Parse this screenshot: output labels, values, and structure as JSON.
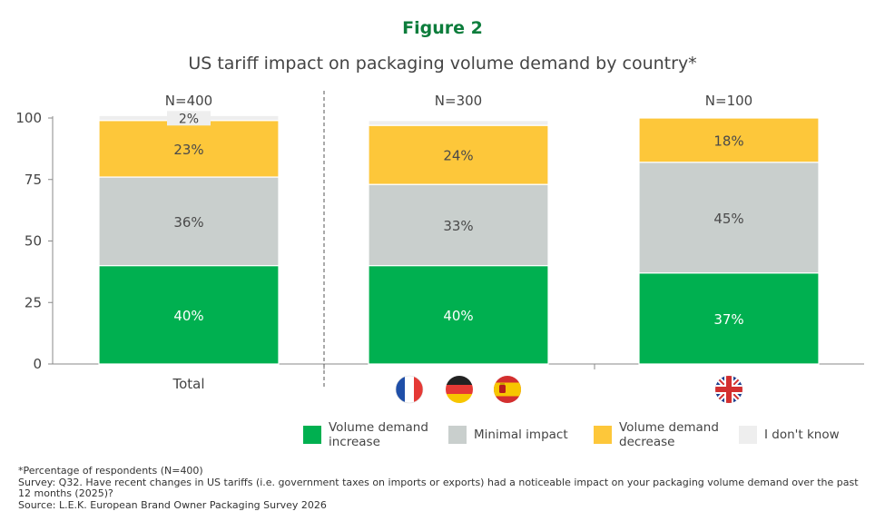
{
  "figure_label": "Figure 2",
  "chart_data": {
    "type": "bar",
    "stacked": true,
    "title": "US tariff impact on packaging volume demand by country*",
    "categories": [
      "Total",
      "France / Germany / Spain",
      "United Kingdom"
    ],
    "category_labels": [
      "Total",
      "",
      ""
    ],
    "group_sizes": [
      "N=400",
      "N=300",
      "N=100"
    ],
    "yticks": [
      0,
      25,
      50,
      75,
      100
    ],
    "ylim": [
      0,
      100
    ],
    "series": [
      {
        "name": "Volume demand increase",
        "values": [
          40,
          40,
          37
        ],
        "labels": [
          "40%",
          "40%",
          "37%"
        ],
        "color": "#00b050"
      },
      {
        "name": "Minimal impact",
        "values": [
          36,
          33,
          45
        ],
        "labels": [
          "36%",
          "33%",
          "45%"
        ],
        "color": "#c9cfcd"
      },
      {
        "name": "Volume demand decrease",
        "values": [
          23,
          24,
          18
        ],
        "labels": [
          "23%",
          "24%",
          "18%"
        ],
        "color": "#fdc73a"
      },
      {
        "name": "I don't know",
        "values": [
          2,
          2,
          0
        ],
        "labels": [
          "2%",
          "",
          ""
        ],
        "color": "#eeeeee"
      }
    ],
    "flags": [
      [
        "france-flag-icon",
        "germany-flag-icon",
        "spain-flag-icon"
      ],
      [
        "uk-flag-icon"
      ]
    ],
    "grid": false,
    "legend_position": "bottom"
  },
  "legend": [
    {
      "label": "Volume demand\nincrease",
      "color": "#00b050"
    },
    {
      "label": "Minimal impact",
      "color": "#c9cfcd"
    },
    {
      "label": "Volume demand\ndecrease",
      "color": "#fdc73a"
    },
    {
      "label": "I don't know",
      "color": "#eeeeee"
    }
  ],
  "footnotes": {
    "line1": "*Percentage of respondents (N=400)",
    "line2": "Survey: Q32. Have recent changes in US tariffs (i.e. government taxes on imports or exports) had a noticeable impact on your packaging volume demand over the past 12 months (2025)?",
    "line3": "Source: L.E.K. European Brand Owner Packaging Survey 2026"
  }
}
